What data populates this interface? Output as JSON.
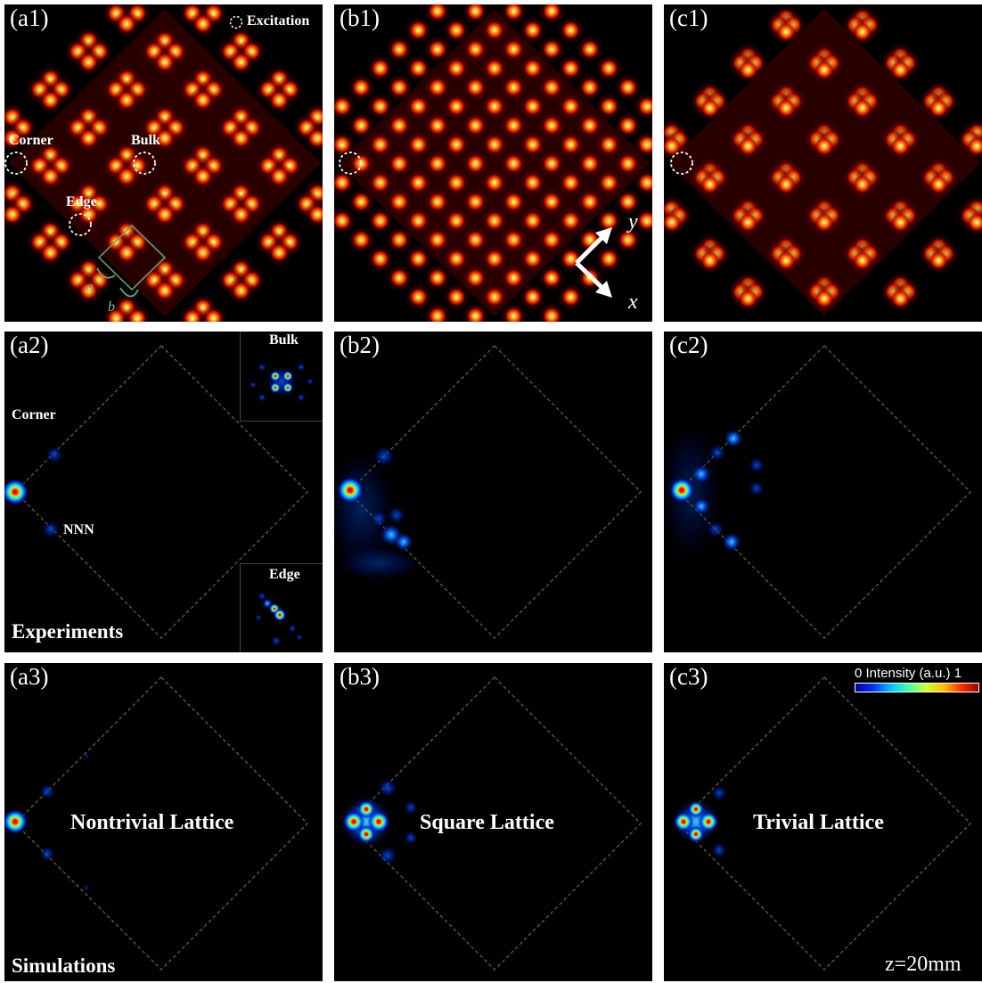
{
  "panels": {
    "a1": "(a1)",
    "b1": "(b1)",
    "c1": "(c1)",
    "a2": "(a2)",
    "b2": "(b2)",
    "c2": "(c2)",
    "a3": "(a3)",
    "b3": "(b3)",
    "c3": "(c3)"
  },
  "a1_labels": {
    "excitation": "Excitation",
    "corner": "Corner",
    "bulk": "Bulk",
    "edge": "Edge",
    "a": "a",
    "b": "b"
  },
  "axes": {
    "x": "x",
    "y": "y"
  },
  "a2_labels": {
    "corner": "Corner",
    "nnn": "NNN",
    "bulk_inset": "Bulk",
    "edge_inset": "Edge",
    "row_title": "Experiments"
  },
  "a3_labels": {
    "row_title": "Simulations"
  },
  "lattice_titles": {
    "a3": "Nontrivial Lattice",
    "b3": "Square Lattice",
    "c3": "Trivial Lattice"
  },
  "colorbar": {
    "min": "0",
    "label": "Intensity (a.u.)",
    "max": "1"
  },
  "propagation": "z=20mm"
}
